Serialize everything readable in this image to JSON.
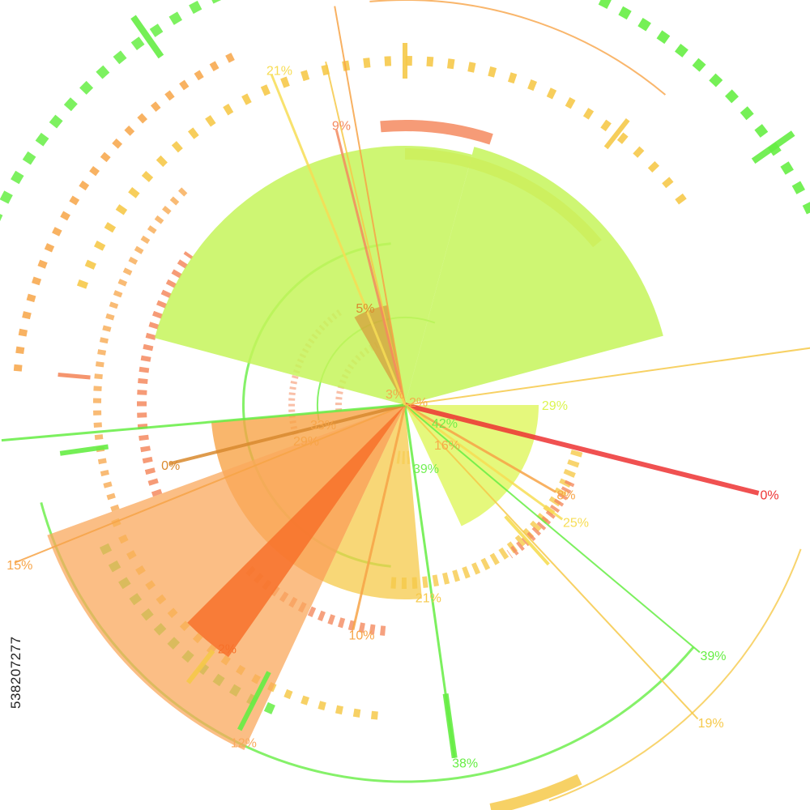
{
  "chart_data": {
    "type": "radial-infographic",
    "title": "",
    "palette": {
      "green": "#66ee44",
      "lime": "#c6f55a",
      "yellow": "#f7dd55",
      "gold": "#f6c94a",
      "orange": "#f7a447",
      "deep_orange": "#f7712a",
      "salmon": "#f48a5f",
      "red": "#ee3333"
    },
    "wedges": [
      {
        "from_deg": -75,
        "to_deg": -15,
        "length": 330,
        "color": "lime",
        "opacity": 0.85,
        "label": "",
        "label_value": null
      },
      {
        "from_deg": -165,
        "to_deg": -75,
        "length": 320,
        "color": "lime",
        "opacity": 0.85,
        "label": "",
        "label_value": null
      },
      {
        "from_deg": 0,
        "to_deg": 65,
        "length": 165,
        "color": "yellow_green",
        "opacity": 0.75,
        "label": "29%",
        "label_value": 29
      },
      {
        "from_deg": 115,
        "to_deg": 175,
        "length": 240,
        "color": "orange",
        "opacity": 0.8,
        "label": "",
        "label_value": null
      },
      {
        "from_deg": 85,
        "to_deg": 115,
        "length": 240,
        "color": "gold",
        "opacity": 0.75,
        "label": "21%",
        "label_value": 21
      },
      {
        "from_deg": 115,
        "to_deg": 160,
        "length": 470,
        "color": "peach",
        "opacity": 0.75,
        "label": "12%",
        "label_value": 12
      },
      {
        "from_deg": 125,
        "to_deg": 135,
        "length": 380,
        "color": "deep_orange",
        "opacity": 0.85,
        "label": "2%",
        "label_value": 2
      },
      {
        "from_deg": -120,
        "to_deg": -100,
        "length": 125,
        "color": "brown_orange",
        "opacity": 0.6,
        "label": "5%",
        "label_value": 5
      }
    ],
    "spokes": [
      {
        "deg": 14,
        "length": 450,
        "color": "red",
        "width": 6,
        "label": "0%",
        "label_value": 0
      },
      {
        "deg": 30,
        "length": 215,
        "color": "orange",
        "width": 3,
        "label": "8%",
        "label_value": 8
      },
      {
        "deg": 36,
        "length": 240,
        "color": "yellow",
        "width": 3,
        "label": "25%",
        "label_value": 25
      },
      {
        "deg": 40,
        "length": 475,
        "color": "green",
        "width": 2,
        "label": "39%",
        "label_value": 39
      },
      {
        "deg": 47,
        "length": 530,
        "color": "gold",
        "width": 2,
        "label": "19%",
        "label_value": 19
      },
      {
        "deg": 82,
        "length": 440,
        "color": "green",
        "width": 3,
        "label": "38%",
        "label_value": 38
      },
      {
        "deg": 103,
        "length": 285,
        "color": "orange",
        "width": 3,
        "label": "10%",
        "label_value": 10
      },
      {
        "deg": 158,
        "length": 520,
        "color": "orange",
        "width": 2,
        "label": "15%",
        "label_value": 15
      },
      {
        "deg": 166,
        "length": 300,
        "color": "brown_orange",
        "width": 4,
        "label": "0%",
        "label_value": 0
      },
      {
        "deg": 175,
        "length": 500,
        "color": "green",
        "width": 3,
        "label": "",
        "label_value": null
      },
      {
        "deg": -103,
        "length": 435,
        "color": "gold",
        "width": 2,
        "label": "",
        "label_value": null
      },
      {
        "deg": -104,
        "length": 350,
        "color": "salmon",
        "width": 3,
        "label": "9%",
        "label_value": 9
      },
      {
        "deg": -100,
        "length": 500,
        "color": "orange",
        "width": 2,
        "label": "",
        "label_value": null
      },
      {
        "deg": -112,
        "length": 440,
        "color": "yellow",
        "width": 3,
        "label": "21%",
        "label_value": 21
      },
      {
        "deg": -8,
        "length": 520,
        "color": "gold",
        "width": 2,
        "label": "",
        "label_value": null
      }
    ],
    "center_labels": [
      {
        "text": "3%",
        "value": 3,
        "color": "orange"
      },
      {
        "text": "2%",
        "value": 2,
        "color": "orange"
      },
      {
        "text": "42%",
        "value": 42,
        "color": "green"
      },
      {
        "text": "16%",
        "value": 16,
        "color": "orange"
      },
      {
        "text": "39%",
        "value": 39,
        "color": "green"
      },
      {
        "text": "29%",
        "value": 29,
        "color": "orange"
      },
      {
        "text": "33%",
        "value": 33,
        "color": "orange"
      }
    ],
    "arcs": [
      {
        "r": 310,
        "from_deg": -90,
        "to_deg": -40,
        "color": "gold",
        "width": 14,
        "opacity": 0.75,
        "dash": null
      },
      {
        "r": 345,
        "from_deg": -95,
        "to_deg": -72,
        "color": "salmon",
        "width": 14,
        "opacity": 0.85,
        "dash": null
      },
      {
        "r": 425,
        "from_deg": -160,
        "to_deg": -35,
        "color": "gold",
        "width": 12,
        "opacity": 0.9,
        "dash": "8,18"
      },
      {
        "r": 500,
        "from_deg": -95,
        "to_deg": -50,
        "color": "orange",
        "width": 2,
        "opacity": 0.8,
        "dash": null
      },
      {
        "r": 555,
        "from_deg": -70,
        "to_deg": 0,
        "color": "green",
        "width": 12,
        "opacity": 0.9,
        "dash": "12,16"
      },
      {
        "r": 555,
        "from_deg": 178,
        "to_deg": 260,
        "color": "green",
        "width": 12,
        "opacity": 0.85,
        "dash": "12,16"
      },
      {
        "r": 480,
        "from_deg": 185,
        "to_deg": 245,
        "color": "orange",
        "width": 10,
        "opacity": 0.85,
        "dash": "8,14"
      },
      {
        "r": 410,
        "from_deg": 155,
        "to_deg": 112,
        "color": "green",
        "width": 12,
        "opacity": 0.85,
        "dash": "10,14"
      },
      {
        "r": 385,
        "from_deg": 95,
        "to_deg": 160,
        "color": "gold",
        "width": 10,
        "opacity": 0.85,
        "dash": "8,14"
      },
      {
        "r": 465,
        "from_deg": 40,
        "to_deg": 165,
        "color": "green",
        "width": 3,
        "opacity": 0.8,
        "dash": null
      },
      {
        "r": 520,
        "from_deg": 20,
        "to_deg": 70,
        "color": "gold",
        "width": 2,
        "opacity": 0.8,
        "dash": null
      },
      {
        "r": 510,
        "from_deg": 65,
        "to_deg": 78,
        "color": "gold",
        "width": 14,
        "opacity": 0.85,
        "dash": null
      },
      {
        "r": 220,
        "from_deg": 15,
        "to_deg": 95,
        "color": "gold",
        "width": 14,
        "opacity": 0.8,
        "dash": "6,7"
      },
      {
        "r": 225,
        "from_deg": 25,
        "to_deg": 55,
        "color": "salmon",
        "width": 12,
        "opacity": 0.8,
        "dash": "4,5"
      },
      {
        "r": 280,
        "from_deg": 95,
        "to_deg": 135,
        "color": "salmon",
        "width": 12,
        "opacity": 0.8,
        "dash": "6,7"
      },
      {
        "r": 325,
        "from_deg": 160,
        "to_deg": 215,
        "color": "salmon",
        "width": 12,
        "opacity": 0.85,
        "dash": "6,8"
      },
      {
        "r": 380,
        "from_deg": 160,
        "to_deg": 225,
        "color": "orange",
        "width": 10,
        "opacity": 0.75,
        "dash": "6,9"
      },
      {
        "r": 200,
        "from_deg": 95,
        "to_deg": 265,
        "color": "green",
        "width": 3,
        "opacity": 0.8,
        "dash": null
      },
      {
        "r": 108,
        "from_deg": 170,
        "to_deg": 290,
        "color": "green",
        "width": 2,
        "opacity": 0.8,
        "dash": null
      },
      {
        "r": 140,
        "from_deg": 165,
        "to_deg": 235,
        "color": "salmon",
        "width": 8,
        "opacity": 0.55,
        "dash": "3,4"
      },
      {
        "r": 82,
        "from_deg": 175,
        "to_deg": 245,
        "color": "salmon",
        "width": 8,
        "opacity": 0.55,
        "dash": "3,4"
      },
      {
        "r": 65,
        "from_deg": 85,
        "to_deg": 100,
        "color": "gold",
        "width": 16,
        "opacity": 0.6,
        "dash": "3,3"
      }
    ],
    "ticks": [
      {
        "r": 425,
        "deg": -90,
        "len": 44,
        "color": "gold",
        "width": 6
      },
      {
        "r": 425,
        "deg": -52,
        "len": 44,
        "color": "gold",
        "width": 6
      },
      {
        "r": 555,
        "deg": -35,
        "len": 60,
        "color": "green",
        "width": 8
      },
      {
        "r": 555,
        "deg": -80,
        "len": 40,
        "color": "green",
        "width": 8
      },
      {
        "r": 555,
        "deg": 235,
        "len": 60,
        "color": "green",
        "width": 8
      },
      {
        "r": 410,
        "deg": 185,
        "len": 40,
        "color": "salmon",
        "width": 5
      },
      {
        "r": 400,
        "deg": 172,
        "len": 60,
        "color": "green",
        "width": 6
      },
      {
        "r": 410,
        "deg": 128,
        "len": 50,
        "color": "gold",
        "width": 6
      },
      {
        "r": 410,
        "deg": 117,
        "len": 80,
        "color": "green",
        "width": 6
      },
      {
        "r": 400,
        "deg": 82,
        "len": 80,
        "color": "green",
        "width": 7
      },
      {
        "r": 225,
        "deg": 48,
        "len": 80,
        "color": "yellow",
        "width": 4
      }
    ],
    "id_text": "538207277"
  }
}
